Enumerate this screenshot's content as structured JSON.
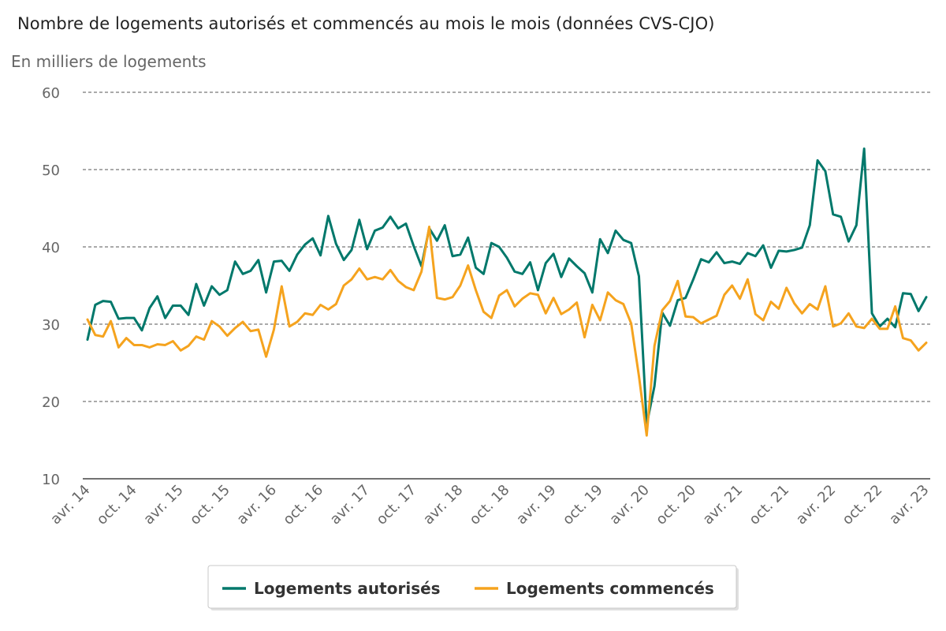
{
  "chart_data": {
    "type": "line",
    "title": "Nombre de logements autorisés et commencés au mois le mois (données CVS-CJO)",
    "ylabel": "En milliers de logements",
    "xlabel": "",
    "ylim": [
      10,
      60
    ],
    "yticks": [
      10,
      20,
      30,
      40,
      50,
      60
    ],
    "grid": true,
    "legend_position": "bottom-center",
    "x_start": "avr. 14",
    "x_tick_every_months": 6,
    "x_tick_labels": [
      "avr. 14",
      "oct. 14",
      "avr. 15",
      "oct. 15",
      "avr. 16",
      "oct. 16",
      "avr. 17",
      "oct. 17",
      "avr. 18",
      "oct. 18",
      "avr. 19",
      "oct. 19",
      "avr. 20",
      "oct. 20",
      "avr. 21",
      "oct. 21",
      "avr. 22",
      "oct. 22",
      "avr. 23"
    ],
    "series": [
      {
        "name": "Logements autorisés",
        "color": "#00786b",
        "values": [
          28.0,
          32.5,
          33.0,
          32.9,
          30.7,
          30.8,
          30.8,
          29.2,
          32.1,
          33.6,
          30.8,
          32.4,
          32.4,
          31.2,
          35.2,
          32.4,
          34.9,
          33.8,
          34.4,
          38.1,
          36.5,
          36.9,
          38.3,
          34.1,
          38.1,
          38.2,
          36.9,
          39.0,
          40.3,
          41.1,
          38.9,
          44.0,
          40.4,
          38.3,
          39.6,
          43.5,
          39.7,
          42.1,
          42.5,
          43.9,
          42.4,
          43.0,
          40.1,
          37.5,
          42.4,
          40.8,
          42.8,
          38.8,
          39.0,
          41.2,
          37.3,
          36.5,
          40.5,
          40.0,
          38.6,
          36.8,
          36.5,
          38.0,
          34.4,
          37.9,
          39.1,
          36.1,
          38.5,
          37.5,
          36.6,
          34.1,
          41.0,
          39.2,
          42.1,
          40.9,
          40.5,
          36.2,
          17.0,
          22.0,
          31.5,
          29.8,
          33.1,
          33.4,
          35.8,
          38.4,
          38.0,
          39.3,
          37.9,
          38.1,
          37.8,
          39.2,
          38.8,
          40.2,
          37.3,
          39.5,
          39.4,
          39.6,
          39.9,
          42.8,
          51.2,
          49.8,
          44.2,
          43.9,
          40.7,
          42.8,
          52.7,
          31.4,
          29.7,
          30.7,
          29.6,
          34.0,
          33.9,
          31.7,
          33.5
        ]
      },
      {
        "name": "Logements commencés",
        "color": "#f5a31e",
        "values": [
          30.6,
          28.6,
          28.4,
          30.4,
          27.0,
          28.2,
          27.3,
          27.3,
          27.0,
          27.4,
          27.3,
          27.8,
          26.6,
          27.2,
          28.4,
          28.0,
          30.4,
          29.7,
          28.5,
          29.5,
          30.3,
          29.1,
          29.3,
          25.8,
          29.3,
          34.9,
          29.7,
          30.3,
          31.4,
          31.2,
          32.5,
          31.9,
          32.6,
          35.0,
          35.8,
          37.2,
          35.8,
          36.1,
          35.8,
          37.0,
          35.6,
          34.8,
          34.4,
          36.8,
          42.6,
          33.4,
          33.2,
          33.5,
          35.0,
          37.6,
          34.4,
          31.6,
          30.8,
          33.7,
          34.4,
          32.3,
          33.3,
          34.0,
          33.8,
          31.4,
          33.4,
          31.3,
          31.9,
          32.8,
          28.3,
          32.5,
          30.5,
          34.1,
          33.1,
          32.6,
          30.1,
          23.3,
          15.6,
          27.2,
          31.8,
          33.0,
          35.6,
          31.0,
          30.9,
          30.1,
          30.6,
          31.1,
          33.8,
          35.0,
          33.3,
          35.8,
          31.3,
          30.5,
          32.9,
          32.0,
          34.7,
          32.7,
          31.4,
          32.6,
          31.9,
          34.9,
          29.7,
          30.1,
          31.4,
          29.7,
          29.5,
          30.7,
          29.4,
          29.4,
          32.3,
          28.2,
          27.9,
          26.6,
          27.6
        ]
      }
    ]
  }
}
